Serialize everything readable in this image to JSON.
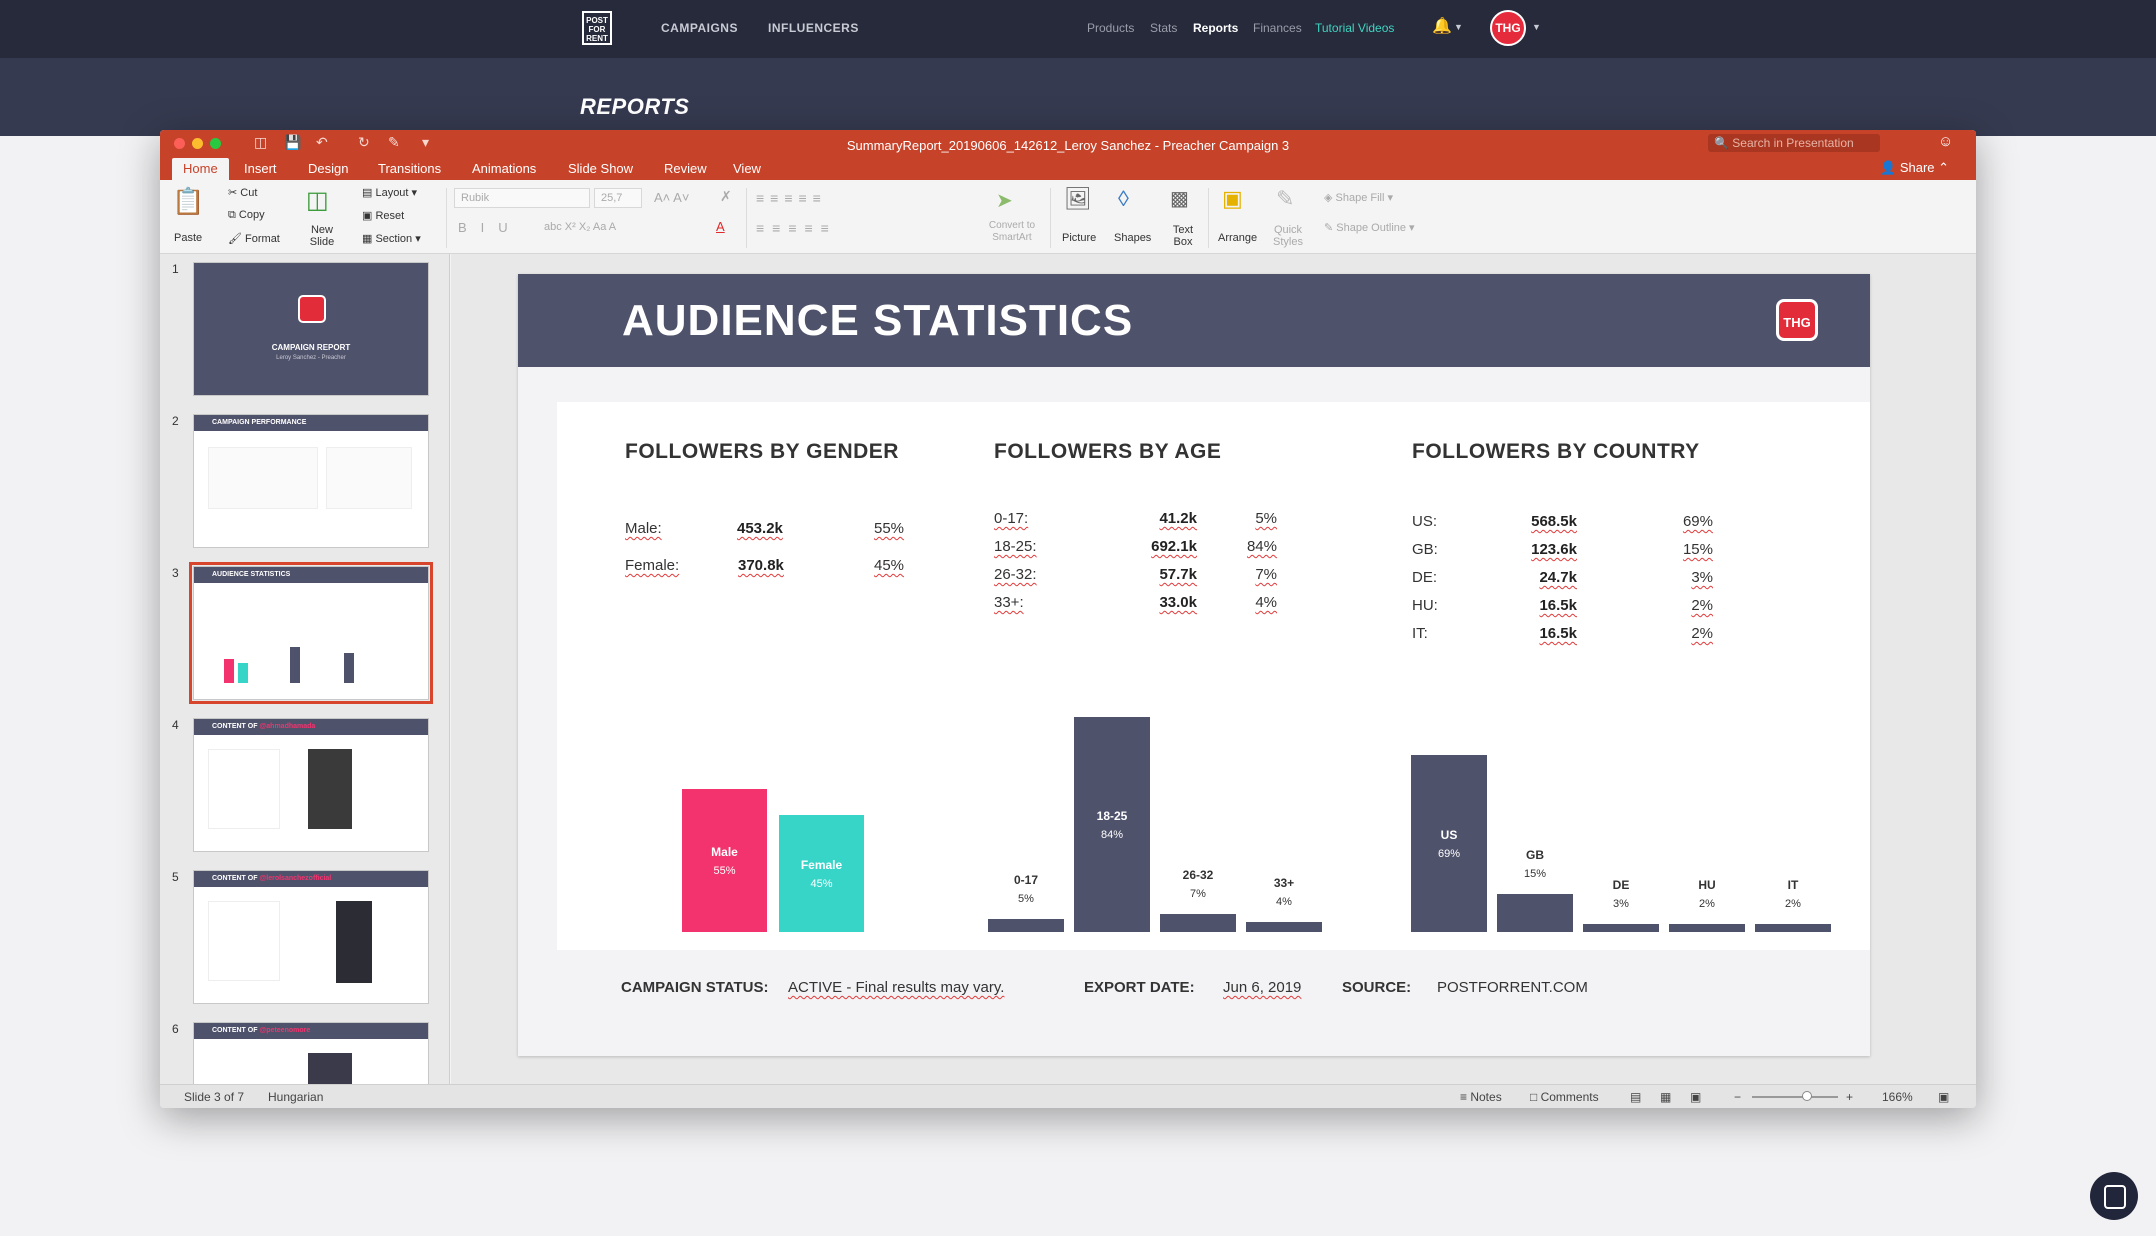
{
  "nav": {
    "logo_text": "POST FOR RENT",
    "main_links": [
      "CAMPAIGNS",
      "INFLUENCERS"
    ],
    "sub_links": [
      "Products",
      "Stats",
      "Reports",
      "Finances",
      "Tutorial Videos"
    ],
    "active": "Reports",
    "avatar_text": "THG",
    "icons": [
      "bell-icon",
      "chevron-down-icon"
    ]
  },
  "page_title": "REPORTS",
  "window": {
    "title": "SummaryReport_20190606_142612_Leroy Sanchez - Preacher Campaign 3",
    "search_placeholder": "Search in Presentation",
    "share_label": "Share",
    "tabs": [
      "Home",
      "Insert",
      "Design",
      "Transitions",
      "Animations",
      "Slide Show",
      "Review",
      "View"
    ],
    "active_tab": "Home"
  },
  "ribbon": {
    "paste": "Paste",
    "cut": "Cut",
    "copy": "Copy",
    "format": "Format",
    "new_slide": "New Slide",
    "layout": "Layout",
    "reset": "Reset",
    "section": "Section",
    "font_name": "Rubik",
    "font_size": "25,7",
    "convert": "Convert to SmartArt",
    "picture": "Picture",
    "shapes": "Shapes",
    "text_box": "Text Box",
    "arrange": "Arrange",
    "quick_styles": "Quick Styles",
    "shape_fill": "Shape Fill",
    "shape_outline": "Shape Outline"
  },
  "thumbnails": [
    {
      "num": "1",
      "title": "CAMPAIGN REPORT",
      "sub": "Leroy Sanchez - Preacher"
    },
    {
      "num": "2",
      "title": "CAMPAIGN PERFORMANCE"
    },
    {
      "num": "3",
      "title": "AUDIENCE STATISTICS"
    },
    {
      "num": "4",
      "title": "CONTENT OF",
      "handle": "@ahmadhamada"
    },
    {
      "num": "5",
      "title": "CONTENT OF",
      "handle": "@lerolsanchezofficial"
    },
    {
      "num": "6",
      "title": "CONTENT OF",
      "handle": "@peteenomore"
    }
  ],
  "slide": {
    "title": "AUDIENCE STATISTICS",
    "badge": "THG",
    "gender": {
      "title": "FOLLOWERS BY GENDER",
      "rows": [
        {
          "label": "Male:",
          "value": "453.2k",
          "pct": "55%"
        },
        {
          "label": "Female:",
          "value": "370.8k",
          "pct": "45%"
        }
      ]
    },
    "age": {
      "title": "FOLLOWERS BY AGE",
      "rows": [
        {
          "label": "0-17:",
          "value": "41.2k",
          "pct": "5%"
        },
        {
          "label": "18-25:",
          "value": "692.1k",
          "pct": "84%"
        },
        {
          "label": "26-32:",
          "value": "57.7k",
          "pct": "7%"
        },
        {
          "label": "33+:",
          "value": "33.0k",
          "pct": "4%"
        }
      ]
    },
    "country": {
      "title": "FOLLOWERS BY COUNTRY",
      "rows": [
        {
          "label": "US:",
          "value": "568.5k",
          "pct": "69%"
        },
        {
          "label": "GB:",
          "value": "123.6k",
          "pct": "15%"
        },
        {
          "label": "DE:",
          "value": "24.7k",
          "pct": "3%"
        },
        {
          "label": "HU:",
          "value": "16.5k",
          "pct": "2%"
        },
        {
          "label": "IT:",
          "value": "16.5k",
          "pct": "2%"
        }
      ]
    },
    "footer": {
      "status_label": "CAMPAIGN STATUS:",
      "status_value": "ACTIVE - Final results may vary.",
      "export_label": "EXPORT DATE:",
      "export_value": "Jun 6, 2019",
      "source_label": "SOURCE:",
      "source_value": "POSTFORRENT.COM"
    }
  },
  "chart_data": [
    {
      "type": "bar",
      "categories": [
        "Male",
        "Female"
      ],
      "values": [
        55,
        45
      ],
      "labels": [
        "55%",
        "45%"
      ],
      "colors": [
        "#f2336e",
        "#37d5c8"
      ]
    },
    {
      "type": "bar",
      "categories": [
        "0-17",
        "18-25",
        "26-32",
        "33+"
      ],
      "values": [
        5,
        84,
        7,
        4
      ],
      "labels": [
        "5%",
        "84%",
        "7%",
        "4%"
      ],
      "color": "#4f526b"
    },
    {
      "type": "bar",
      "categories": [
        "US",
        "GB",
        "DE",
        "HU",
        "IT"
      ],
      "values": [
        69,
        15,
        3,
        2,
        2
      ],
      "labels": [
        "69%",
        "15%",
        "3%",
        "2%",
        "2%"
      ],
      "color": "#4f526b"
    }
  ],
  "status": {
    "slide_info": "Slide 3 of 7",
    "language": "Hungarian",
    "notes": "Notes",
    "comments": "Comments",
    "zoom": "166%"
  },
  "colors": {
    "nav_bg": "#262a3b",
    "accent_ppt": "#c6432a",
    "slide_header": "#4f526b",
    "pink": "#f2336e",
    "teal": "#37d5c8",
    "brand_red": "#e22c3a"
  }
}
